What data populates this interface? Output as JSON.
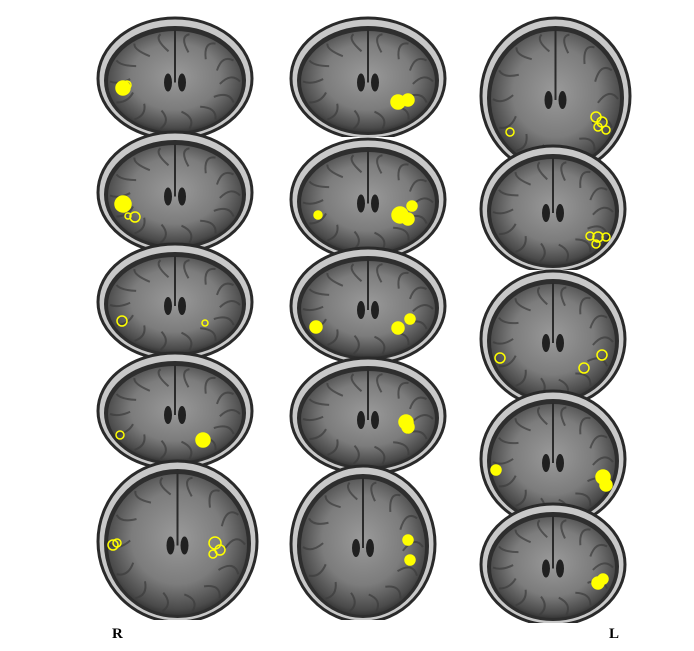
{
  "figure": {
    "labels": {
      "right": "R",
      "left": "L"
    },
    "marker_color": "#ffff00",
    "background": "#ffffff"
  }
}
